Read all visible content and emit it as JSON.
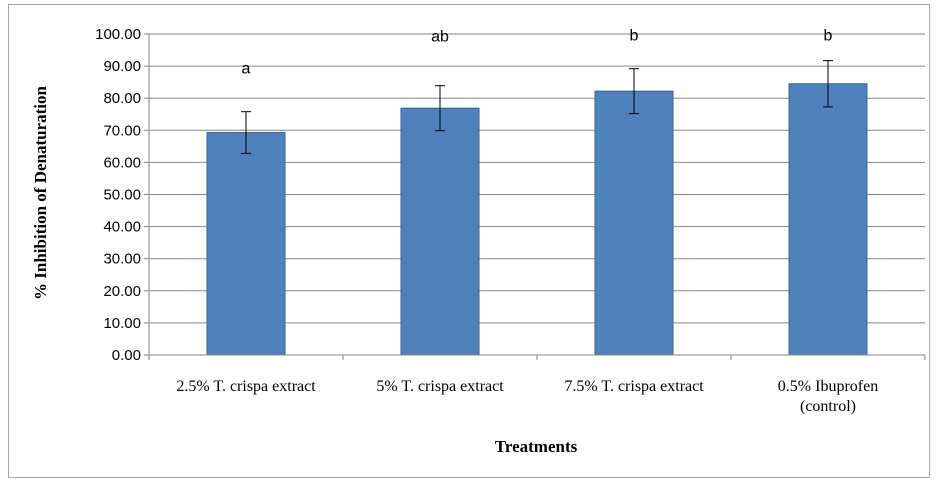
{
  "chart_data": {
    "type": "bar",
    "categories": [
      [
        "2.5% T. crispa extract"
      ],
      [
        "5% T. crispa extract"
      ],
      [
        "7.5% T. crispa extract"
      ],
      [
        "0.5% Ibuprofen",
        "(control)"
      ]
    ],
    "values": [
      69.3,
      76.9,
      82.2,
      84.5
    ],
    "errors": [
      6.5,
      7.0,
      7.0,
      7.2
    ],
    "significance_labels": [
      "a",
      "ab",
      "b",
      "b"
    ],
    "sig_label_values": [
      89.6,
      99.6,
      99.9,
      99.9
    ],
    "title": "",
    "xlabel": "Treatments",
    "ylabel": "% Inhibition  of Denaturation",
    "ylim": [
      0,
      100
    ],
    "yticks": [
      "0.00",
      "10.00",
      "20.00",
      "30.00",
      "40.00",
      "50.00",
      "60.00",
      "70.00",
      "80.00",
      "90.00",
      "100.00"
    ],
    "grid": true,
    "legend": "none",
    "bar_color": "#4f81bd",
    "bar_edge_color": "#3a6494",
    "gridline_color": "#868686"
  }
}
